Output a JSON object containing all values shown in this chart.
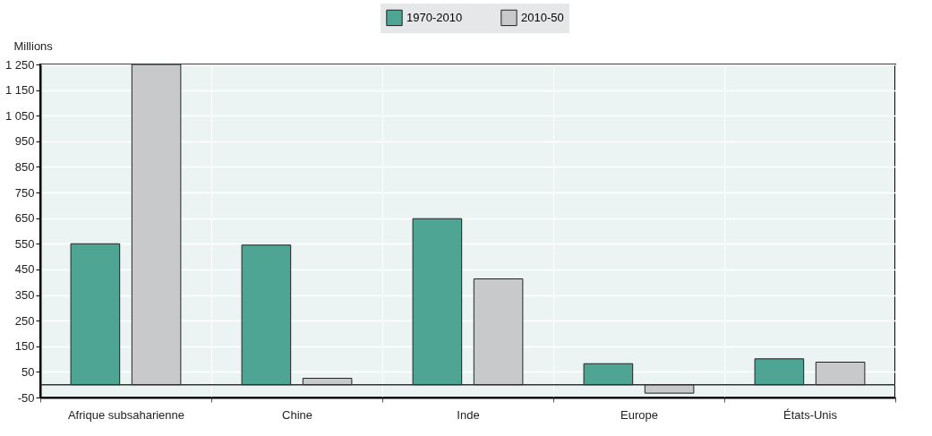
{
  "chart_data": {
    "type": "bar",
    "ylabel": "Millions",
    "categories": [
      "Afrique subsaharienne",
      "Chine",
      "Inde",
      "Europe",
      "États-Unis"
    ],
    "series": [
      {
        "name": "1970-2010",
        "color": "#4ea594",
        "values": [
          550,
          545,
          648,
          82,
          101
        ]
      },
      {
        "name": "2010-50",
        "color": "#c8c9cb",
        "values": [
          1250,
          25,
          413,
          -33,
          88
        ]
      }
    ],
    "ylim": [
      -50,
      1250
    ],
    "yticks": [
      {
        "value": -50,
        "label": "-50"
      },
      50,
      150,
      250,
      350,
      450,
      550,
      650,
      750,
      850,
      950,
      {
        "value": 1050,
        "label": "1 050"
      },
      {
        "value": 1150,
        "label": "1 150"
      },
      {
        "value": 1250,
        "label": "1 250"
      }
    ],
    "ref_lines": [
      {
        "axis": "y",
        "value": 0,
        "color": "#333333"
      }
    ],
    "grid": true,
    "legend": "top"
  }
}
